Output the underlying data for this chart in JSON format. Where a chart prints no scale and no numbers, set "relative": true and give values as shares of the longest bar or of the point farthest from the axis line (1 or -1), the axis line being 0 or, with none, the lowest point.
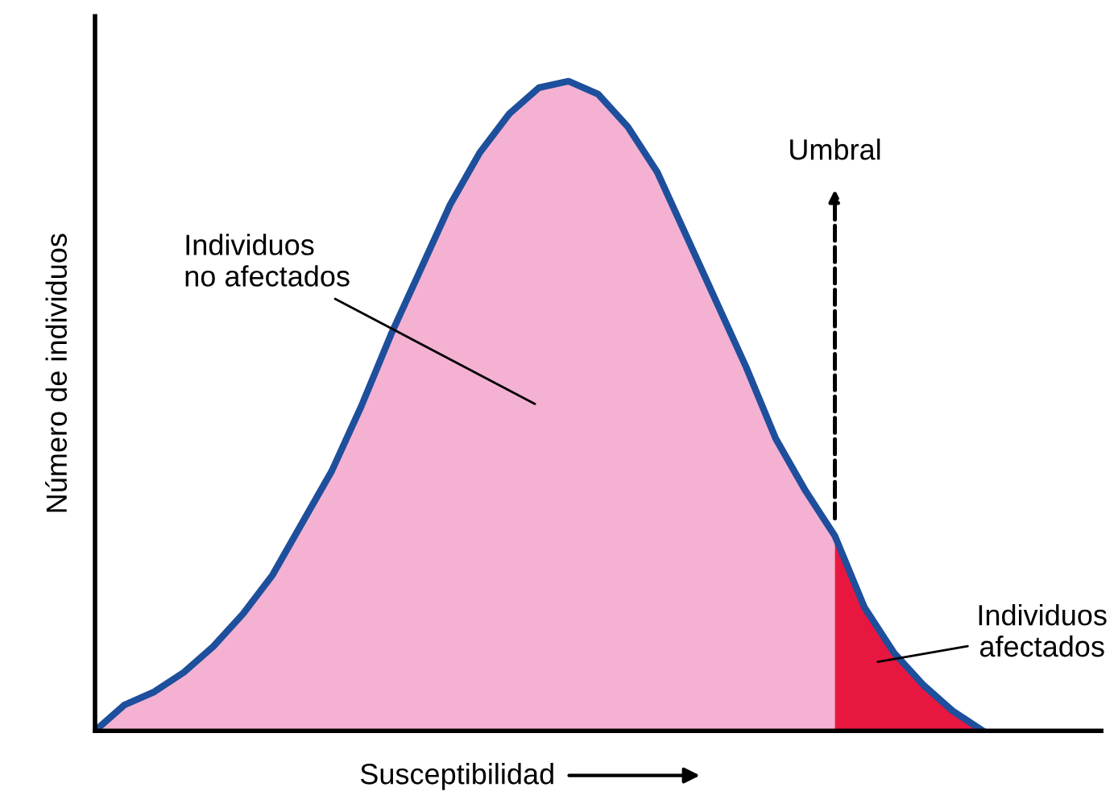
{
  "chart_data": {
    "type": "area",
    "relative": true,
    "xlabel": "Susceptibilidad",
    "ylabel": "Número de individuos",
    "categories": [
      null,
      null,
      null,
      null,
      null,
      null,
      null,
      null,
      null,
      null,
      null,
      null,
      null,
      null,
      null,
      null,
      null,
      null,
      null,
      null,
      null,
      null,
      null,
      null,
      null,
      null,
      null,
      null,
      null,
      null,
      null
    ],
    "series": [
      {
        "color": "#f4b1d1",
        "values": [
          0,
          0.04,
          0.06,
          0.09,
          0.13,
          0.18,
          0.24,
          0.32,
          0.4,
          0.5,
          0.61,
          0.71,
          0.81,
          0.89,
          0.95,
          0.99,
          1.0,
          0.98,
          0.93,
          0.86,
          0.76,
          0.66,
          0.56,
          0.45,
          0.37,
          0.3,
          null,
          null,
          null,
          null,
          null
        ]
      },
      {
        "color": "#e8173f",
        "values": [
          null,
          null,
          null,
          null,
          null,
          null,
          null,
          null,
          null,
          null,
          null,
          null,
          null,
          null,
          null,
          null,
          null,
          null,
          null,
          null,
          null,
          null,
          null,
          null,
          null,
          0.3,
          0.19,
          0.12,
          0.07,
          0.03,
          0
        ]
      },
      {
        "type": "line",
        "color": "#1d4f9c",
        "values": [
          0,
          0.04,
          0.06,
          0.09,
          0.13,
          0.18,
          0.24,
          0.32,
          0.4,
          0.5,
          0.61,
          0.71,
          0.81,
          0.89,
          0.95,
          0.99,
          1.0,
          0.98,
          0.93,
          0.86,
          0.76,
          0.66,
          0.56,
          0.45,
          0.37,
          0.3,
          0.19,
          0.12,
          0.07,
          0.03,
          0
        ]
      }
    ],
    "annotations": [
      "Individuos\nno afectados",
      "Umbral",
      "Individuos\nafectados"
    ]
  }
}
